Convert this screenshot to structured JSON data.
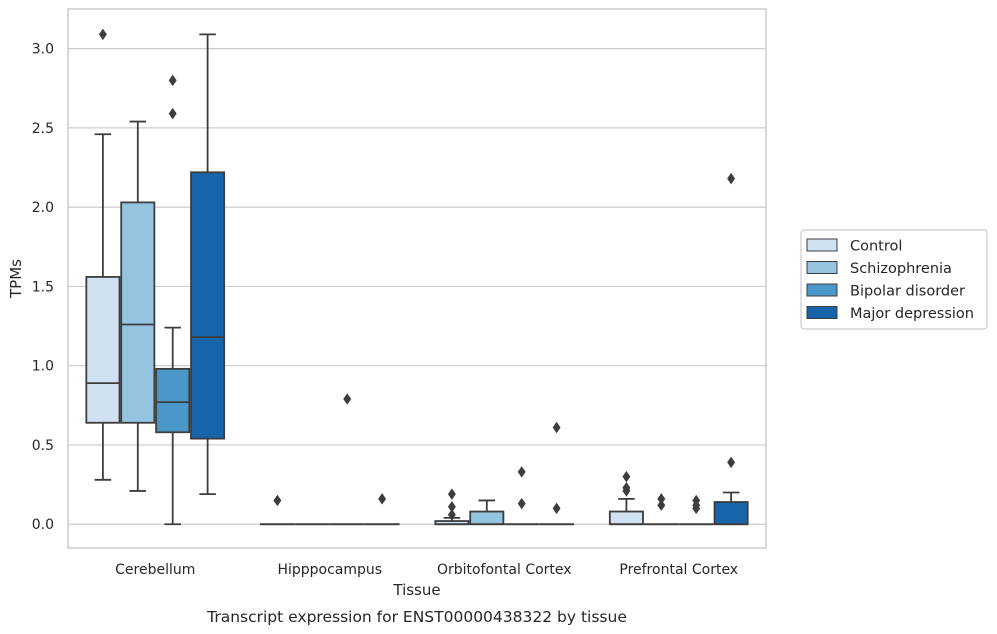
{
  "chart_data": {
    "type": "box",
    "caption": "Transcript expression for ENST00000438322 by tissue",
    "xlabel": "Tissue",
    "ylabel": "TPMs",
    "ylim": [
      -0.15,
      3.25
    ],
    "yticks": [
      "0.0",
      "0.5",
      "1.0",
      "1.5",
      "2.0",
      "2.5",
      "3.0"
    ],
    "grid": "horizontal",
    "legend_position": "right",
    "categories": [
      "Cerebellum",
      "Hipppocampus",
      "Orbitofontal Cortex",
      "Prefrontal Cortex"
    ],
    "series": [
      {
        "name": "Control",
        "color": "#d0e1f2",
        "boxes": [
          {
            "whisker_low": 0.28,
            "q1": 0.64,
            "median": 0.89,
            "q3": 1.56,
            "whisker_high": 2.46,
            "outliers": [
              3.09
            ]
          },
          {
            "whisker_low": 0.0,
            "q1": 0.0,
            "median": 0.0,
            "q3": 0.0,
            "whisker_high": 0.0,
            "outliers": [
              0.15
            ]
          },
          {
            "whisker_low": 0.0,
            "q1": 0.0,
            "median": 0.0,
            "q3": 0.02,
            "whisker_high": 0.04,
            "outliers": [
              0.06,
              0.11,
              0.19
            ]
          },
          {
            "whisker_low": 0.0,
            "q1": 0.0,
            "median": 0.0,
            "q3": 0.08,
            "whisker_high": 0.16,
            "outliers": [
              0.21,
              0.23,
              0.3
            ]
          }
        ]
      },
      {
        "name": "Schizophrenia",
        "color": "#94c4df",
        "boxes": [
          {
            "whisker_low": 0.21,
            "q1": 0.64,
            "median": 1.26,
            "q3": 2.03,
            "whisker_high": 2.54,
            "outliers": []
          },
          {
            "whisker_low": 0.0,
            "q1": 0.0,
            "median": 0.0,
            "q3": 0.0,
            "whisker_high": 0.0,
            "outliers": []
          },
          {
            "whisker_low": 0.0,
            "q1": 0.0,
            "median": 0.0,
            "q3": 0.08,
            "whisker_high": 0.15,
            "outliers": []
          },
          {
            "whisker_low": 0.0,
            "q1": 0.0,
            "median": 0.0,
            "q3": 0.0,
            "whisker_high": 0.0,
            "outliers": [
              0.12,
              0.16
            ]
          }
        ]
      },
      {
        "name": "Bipolar disorder",
        "color": "#4a98c9",
        "boxes": [
          {
            "whisker_low": 0.0,
            "q1": 0.58,
            "median": 0.77,
            "q3": 0.98,
            "whisker_high": 1.24,
            "outliers": [
              2.59,
              2.8
            ]
          },
          {
            "whisker_low": 0.0,
            "q1": 0.0,
            "median": 0.0,
            "q3": 0.0,
            "whisker_high": 0.0,
            "outliers": [
              0.79
            ]
          },
          {
            "whisker_low": 0.0,
            "q1": 0.0,
            "median": 0.0,
            "q3": 0.0,
            "whisker_high": 0.0,
            "outliers": [
              0.13,
              0.33
            ]
          },
          {
            "whisker_low": 0.0,
            "q1": 0.0,
            "median": 0.0,
            "q3": 0.0,
            "whisker_high": 0.0,
            "outliers": [
              0.1,
              0.12,
              0.15
            ]
          }
        ]
      },
      {
        "name": "Major depression",
        "color": "#1764ab",
        "boxes": [
          {
            "whisker_low": 0.19,
            "q1": 0.54,
            "median": 1.18,
            "q3": 2.22,
            "whisker_high": 3.09,
            "outliers": []
          },
          {
            "whisker_low": 0.0,
            "q1": 0.0,
            "median": 0.0,
            "q3": 0.0,
            "whisker_high": 0.0,
            "outliers": [
              0.16
            ]
          },
          {
            "whisker_low": 0.0,
            "q1": 0.0,
            "median": 0.0,
            "q3": 0.0,
            "whisker_high": 0.0,
            "outliers": [
              0.1,
              0.61
            ]
          },
          {
            "whisker_low": 0.0,
            "q1": 0.0,
            "median": 0.0,
            "q3": 0.14,
            "whisker_high": 0.2,
            "outliers": [
              0.39,
              2.18
            ]
          }
        ]
      }
    ]
  }
}
